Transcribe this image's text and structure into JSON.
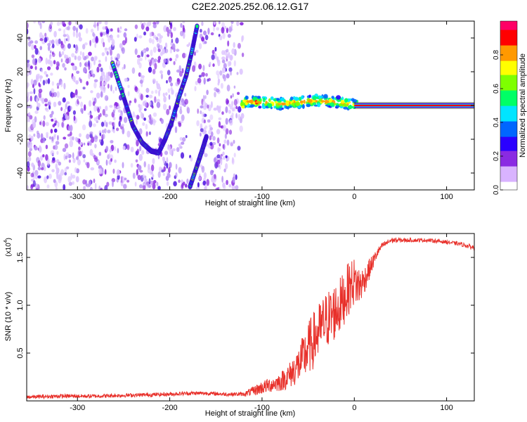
{
  "title": "C2E2.2025.252.06.12.G17",
  "chart_data": [
    {
      "type": "heatmap",
      "title": "C2E2.2025.252.06.12.G17",
      "xlabel": "Height of straight line (km)",
      "ylabel": "Frequency (Hz)",
      "xlim": [
        -355,
        130
      ],
      "ylim": [
        -50,
        50
      ],
      "xticks": [
        -300,
        -200,
        -100,
        0,
        100
      ],
      "yticks": [
        -40,
        -20,
        0,
        20,
        40
      ],
      "colorbar": {
        "label": "Normalized spectral amplitude",
        "range": [
          0,
          1
        ],
        "ticks": [
          0.0,
          0.2,
          0.4,
          0.6,
          0.8
        ],
        "colors": [
          "#ffffff",
          "#d9b3ff",
          "#8a2be2",
          "#2a00ff",
          "#0066ff",
          "#00e5ff",
          "#00ff66",
          "#7fff00",
          "#ffff00",
          "#ff9900",
          "#ff0000",
          "#ff0066"
        ]
      },
      "features": [
        {
          "name": "descending-branch",
          "points": [
            [
              -262,
              25
            ],
            [
              -250,
              5
            ],
            [
              -240,
              -12
            ],
            [
              -230,
              -22
            ],
            [
              -220,
              -27
            ],
            [
              -212,
              -28
            ]
          ]
        },
        {
          "name": "ascending-branch",
          "points": [
            [
              -212,
              -28
            ],
            [
              -205,
              -20
            ],
            [
              -198,
              -10
            ],
            [
              -190,
              5
            ],
            [
              -182,
              18
            ],
            [
              -176,
              32
            ],
            [
              -170,
              48
            ]
          ]
        },
        {
          "name": "lower-branch",
          "points": [
            [
              -178,
              -48
            ],
            [
              -170,
              -35
            ],
            [
              -164,
              -25
            ],
            [
              -160,
              -18
            ]
          ]
        },
        {
          "name": "carrier-line",
          "points": [
            [
              -120,
              2
            ],
            [
              -100,
              2
            ],
            [
              -80,
              1
            ],
            [
              -60,
              2
            ],
            [
              -40,
              3
            ],
            [
              -20,
              2
            ],
            [
              0,
              0.5
            ],
            [
              130,
              0
            ]
          ]
        }
      ]
    },
    {
      "type": "line",
      "xlabel": "Height of straight line (km)",
      "ylabel": "SNR (10 * v/v)",
      "scale_label": "(x10",
      "scale_exp": "4",
      "xlim": [
        -355,
        130
      ],
      "ylim": [
        0,
        1.75
      ],
      "xticks": [
        -300,
        -200,
        -100,
        0,
        100
      ],
      "yticks": [
        0.5,
        1.0,
        1.5
      ],
      "ytick_labels": [
        "0.5",
        "1.0",
        "1.5"
      ],
      "series": [
        {
          "name": "SNR",
          "color": "#e8302a",
          "x": [
            -355,
            -320,
            -280,
            -240,
            -200,
            -180,
            -160,
            -140,
            -120,
            -110,
            -100,
            -90,
            -80,
            -70,
            -60,
            -55,
            -50,
            -45,
            -40,
            -35,
            -30,
            -25,
            -20,
            -15,
            -10,
            -5,
            0,
            5,
            10,
            15,
            20,
            25,
            30,
            40,
            60,
            80,
            100,
            115,
            130
          ],
          "values": [
            0.04,
            0.05,
            0.05,
            0.06,
            0.07,
            0.08,
            0.08,
            0.07,
            0.07,
            0.1,
            0.14,
            0.17,
            0.2,
            0.27,
            0.38,
            0.45,
            0.55,
            0.62,
            0.7,
            0.78,
            0.85,
            0.88,
            0.95,
            1.0,
            1.1,
            1.2,
            1.25,
            1.2,
            1.25,
            1.35,
            1.45,
            1.55,
            1.62,
            1.68,
            1.68,
            1.68,
            1.66,
            1.64,
            1.6
          ],
          "noise": [
            0.02,
            0.02,
            0.02,
            0.02,
            0.02,
            0.02,
            0.02,
            0.02,
            0.02,
            0.05,
            0.07,
            0.08,
            0.1,
            0.14,
            0.2,
            0.25,
            0.28,
            0.3,
            0.3,
            0.3,
            0.3,
            0.32,
            0.3,
            0.3,
            0.28,
            0.28,
            0.25,
            0.22,
            0.15,
            0.12,
            0.08,
            0.05,
            0.03,
            0.03,
            0.02,
            0.02,
            0.02,
            0.02,
            0.03
          ]
        }
      ]
    }
  ]
}
